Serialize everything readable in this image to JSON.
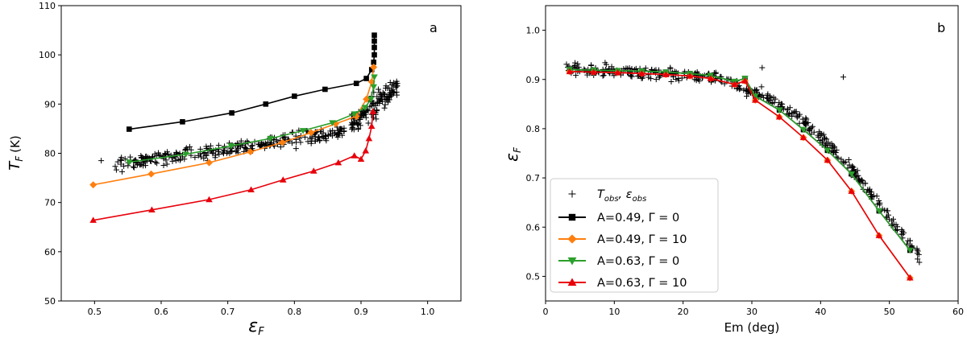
{
  "colors": {
    "black_series": "#000000",
    "orange_series": "#ff7f0e",
    "green_series": "#2ca02c",
    "red_series": "#e8000b",
    "observations": "#000000"
  },
  "chart_data": [
    {
      "type": "scatter",
      "panel": "a",
      "xlabel_symbol": "ε",
      "xlabel_subscript": "F",
      "ylabel_symbol": "T",
      "ylabel_subscript": "F",
      "ylabel_unit": "(K)",
      "xlim": [
        0.45,
        1.05
      ],
      "ylim": [
        50,
        110
      ],
      "xticks": [
        "0.5",
        "0.6",
        "0.7",
        "0.8",
        "0.9",
        "1.0"
      ],
      "yticks": [
        "50",
        "60",
        "70",
        "80",
        "90",
        "100",
        "110"
      ],
      "legend": "none",
      "grid": false,
      "series": [
        {
          "key": "black",
          "marker": "square",
          "color": "#000000",
          "x": [
            0.552,
            0.632,
            0.706,
            0.757,
            0.8,
            0.846,
            0.893,
            0.908,
            0.916,
            0.919,
            0.92,
            0.92,
            0.92,
            0.92
          ],
          "y": [
            84.9,
            86.4,
            88.2,
            90.0,
            91.6,
            93.0,
            94.2,
            95.2,
            97.0,
            98.5,
            100.0,
            101.5,
            102.8,
            104.0
          ]
        },
        {
          "key": "orange",
          "marker": "diamond",
          "color": "#ff7f0e",
          "x": [
            0.498,
            0.585,
            0.672,
            0.734,
            0.782,
            0.825,
            0.862,
            0.893,
            0.908,
            0.916,
            0.919
          ],
          "y": [
            73.6,
            75.8,
            78.1,
            80.3,
            82.2,
            84.2,
            86.0,
            87.5,
            91.0,
            94.5,
            97.5
          ]
        },
        {
          "key": "green",
          "marker": "triangle-down",
          "color": "#2ca02c",
          "x": [
            0.552,
            0.637,
            0.705,
            0.764,
            0.813,
            0.857,
            0.89,
            0.906,
            0.915,
            0.919,
            0.92
          ],
          "y": [
            78.2,
            79.8,
            81.5,
            83.0,
            84.6,
            86.2,
            88.0,
            89.3,
            91.0,
            93.5,
            95.5
          ]
        },
        {
          "key": "red",
          "marker": "triangle-up",
          "color": "#e8000b",
          "x": [
            0.498,
            0.586,
            0.672,
            0.735,
            0.783,
            0.829,
            0.866,
            0.89,
            0.9,
            0.907,
            0.912,
            0.916,
            0.918
          ],
          "y": [
            66.4,
            68.5,
            70.6,
            72.6,
            74.6,
            76.4,
            78.1,
            79.5,
            78.8,
            80.5,
            83.0,
            85.5,
            88.5
          ]
        }
      ],
      "observations": {
        "marker": "plus",
        "color": "#000000",
        "count": 420,
        "x_range": [
          0.51,
          0.955
        ],
        "y_range": [
          77.0,
          96.0
        ]
      }
    },
    {
      "type": "scatter",
      "panel": "b",
      "xlabel": "Em (deg)",
      "ylabel_symbol": "ε",
      "ylabel_subscript": "F",
      "xlim": [
        0,
        60
      ],
      "ylim": [
        0.45,
        1.05
      ],
      "xticks": [
        "0",
        "10",
        "20",
        "30",
        "40",
        "50",
        "60"
      ],
      "yticks": [
        "0.5",
        "0.6",
        "0.7",
        "0.8",
        "0.9",
        "1.0"
      ],
      "legend": "lower-left",
      "grid": false,
      "legend_entries": [
        {
          "key": "obs",
          "marker": "plus",
          "color": "#000000",
          "prefix": "T",
          "prefix_sub": "obs",
          "middle": ", ε",
          "middle_sub": "obs",
          "text": ""
        },
        {
          "key": "black",
          "marker": "square",
          "color": "#000000",
          "text": "A=0.49, Γ = 0"
        },
        {
          "key": "orange",
          "marker": "diamond",
          "color": "#ff7f0e",
          "text": "A=0.49, Γ = 10"
        },
        {
          "key": "green",
          "marker": "triangle-down",
          "color": "#2ca02c",
          "text": "A=0.63, Γ = 0"
        },
        {
          "key": "red",
          "marker": "triangle-up",
          "color": "#e8000b",
          "text": "A=0.63, Γ = 10"
        }
      ],
      "series": [
        {
          "key": "black",
          "marker": "square",
          "color": "#000000",
          "x": [
            3.5,
            7,
            10.5,
            14,
            17.5,
            21,
            24,
            27.5,
            29,
            30.5,
            34,
            37.5,
            41,
            44.5,
            48.5,
            53
          ],
          "y": [
            0.92,
            0.919,
            0.918,
            0.917,
            0.915,
            0.912,
            0.908,
            0.896,
            0.902,
            0.866,
            0.838,
            0.798,
            0.756,
            0.708,
            0.633,
            0.553
          ]
        },
        {
          "key": "orange",
          "marker": "diamond",
          "color": "#ff7f0e",
          "x": [
            3.5,
            7,
            10.5,
            14,
            17.5,
            21,
            24,
            27.5,
            29,
            30.5,
            34,
            37.5,
            41,
            44.5,
            48.5,
            53
          ],
          "y": [
            0.916,
            0.915,
            0.914,
            0.912,
            0.91,
            0.907,
            0.902,
            0.89,
            0.897,
            0.858,
            0.824,
            0.782,
            0.736,
            0.673,
            0.583,
            0.497
          ]
        },
        {
          "key": "green",
          "marker": "triangle-down",
          "color": "#2ca02c",
          "x": [
            3.5,
            7,
            10.5,
            14,
            17.5,
            21,
            24,
            27.5,
            29,
            30.5,
            34,
            37.5,
            41,
            44.5,
            48.5,
            53
          ],
          "y": [
            0.92,
            0.919,
            0.918,
            0.917,
            0.915,
            0.912,
            0.908,
            0.896,
            0.902,
            0.866,
            0.838,
            0.798,
            0.756,
            0.708,
            0.633,
            0.553
          ]
        },
        {
          "key": "red",
          "marker": "triangle-up",
          "color": "#e8000b",
          "x": [
            3.5,
            7,
            10.5,
            14,
            17.5,
            21,
            24,
            27.5,
            29,
            30.5,
            34,
            37.5,
            41,
            44.5,
            48.5,
            53
          ],
          "y": [
            0.916,
            0.915,
            0.914,
            0.912,
            0.91,
            0.907,
            0.902,
            0.89,
            0.897,
            0.858,
            0.824,
            0.782,
            0.736,
            0.673,
            0.583,
            0.497
          ]
        }
      ],
      "observations": {
        "marker": "plus",
        "color": "#000000",
        "count": 420,
        "x_range": [
          3.0,
          54.5
        ],
        "y_range": [
          0.5,
          0.95
        ]
      }
    }
  ]
}
